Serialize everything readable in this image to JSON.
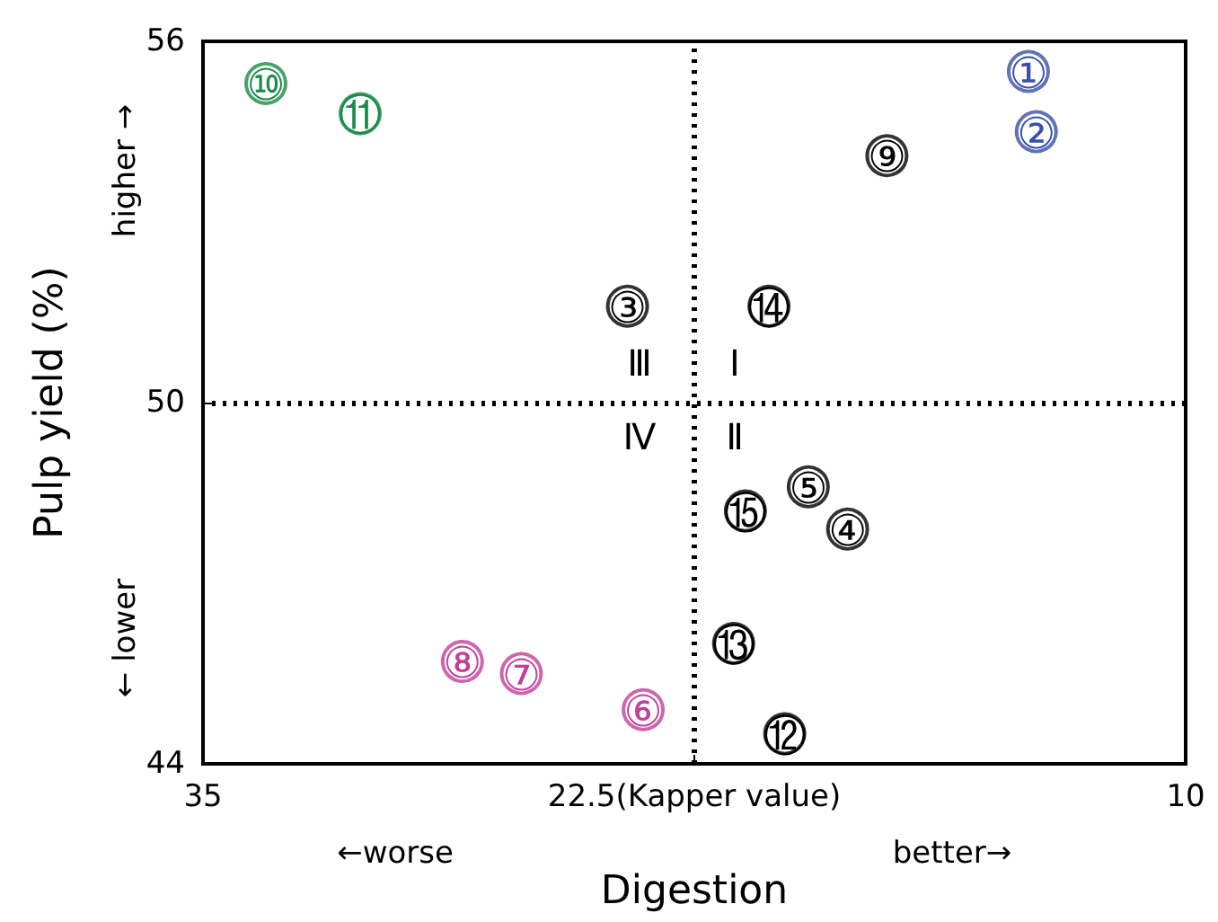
{
  "chart_data": {
    "type": "scatter",
    "xlabel": "Digestion",
    "ylabel": "Pulp yield (%)",
    "xlim": [
      35,
      10
    ],
    "xticks": [
      35,
      {
        "value": 22.5,
        "label": "22.5(Kapper value)"
      },
      10
    ],
    "ylim": [
      44,
      56
    ],
    "yticks": [
      44,
      50,
      56
    ],
    "grid": false,
    "marker": "circle",
    "series": [
      {
        "color": "#3a4fa8",
        "x": [
          14.0,
          13.8
        ],
        "values": [
          55.5,
          54.5
        ]
      },
      {
        "color": "#1a8a4a",
        "x": [
          33.4,
          31.0
        ],
        "values": [
          55.3,
          54.8
        ]
      },
      {
        "color": "#c0409a",
        "x": [
          23.8,
          26.9,
          28.4
        ],
        "values": [
          44.9,
          45.5,
          45.7
        ]
      },
      {
        "color": "#000000",
        "x": [
          24.2,
          18.6,
          19.6,
          17.6,
          20.2,
          21.5,
          20.6,
          21.2
        ],
        "values": [
          51.6,
          47.9,
          48.6,
          54.1,
          44.5,
          46.0,
          51.6,
          48.2
        ]
      }
    ],
    "ref_lines": [
      {
        "axis": "x",
        "value": 22.5,
        "line_style": "dotted",
        "color": "#000000"
      },
      {
        "axis": "y",
        "value": 50,
        "line_style": "dotted",
        "color": "#000000"
      }
    ],
    "annotations": [
      {
        "text": "①",
        "x": 14.0,
        "y": 55.5
      },
      {
        "text": "②",
        "x": 13.8,
        "y": 54.5
      },
      {
        "text": "③",
        "x": 24.2,
        "y": 51.6
      },
      {
        "text": "④",
        "x": 18.6,
        "y": 47.9
      },
      {
        "text": "⑤",
        "x": 19.6,
        "y": 48.6
      },
      {
        "text": "⑥",
        "x": 23.8,
        "y": 44.9
      },
      {
        "text": "⑦",
        "x": 26.9,
        "y": 45.5
      },
      {
        "text": "⑧",
        "x": 28.4,
        "y": 45.7
      },
      {
        "text": "⑨",
        "x": 17.6,
        "y": 54.1
      },
      {
        "text": "⑩",
        "x": 33.4,
        "y": 55.3
      },
      {
        "text": "⑪",
        "x": 31.0,
        "y": 54.8
      },
      {
        "text": "⑫",
        "x": 20.2,
        "y": 44.5
      },
      {
        "text": "⑬",
        "x": 21.5,
        "y": 46.0
      },
      {
        "text": "⑭",
        "x": 20.6,
        "y": 51.6
      },
      {
        "text": "⑮",
        "x": 21.2,
        "y": 48.2
      },
      "Ⅲ",
      "Ⅰ",
      "Ⅳ",
      "Ⅱ",
      "higher →",
      "← lower",
      "←worse",
      "better→"
    ]
  }
}
